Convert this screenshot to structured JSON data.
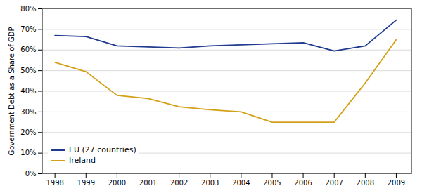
{
  "chart_data": {
    "type": "line",
    "ylabel": "Government Debt as a Share of GDP",
    "x": [
      1998,
      1999,
      2000,
      2001,
      2002,
      2003,
      2004,
      2005,
      2006,
      2007,
      2008,
      2009
    ],
    "series": [
      {
        "name": "EU (27 countries)",
        "color": "#1F3A8F",
        "values": [
          67,
          66.5,
          62,
          61.5,
          61,
          62,
          62.5,
          63,
          63.5,
          59.5,
          62,
          74.5
        ]
      },
      {
        "name": "Ireland",
        "color": "#D4A017",
        "values": [
          54,
          49.5,
          38,
          36.5,
          32.5,
          31,
          30,
          25,
          25,
          25,
          44,
          65
        ]
      }
    ],
    "xlim": [
      1997.6,
      2009.5
    ],
    "xticks": [
      1998,
      1999,
      2000,
      2001,
      2002,
      2003,
      2004,
      2005,
      2006,
      2007,
      2008,
      2009
    ],
    "ylim": [
      0,
      80
    ],
    "yticks": [
      {
        "value": 0,
        "label": "0%"
      },
      {
        "value": 10,
        "label": "10%"
      },
      {
        "value": 20,
        "label": "20%"
      },
      {
        "value": 30,
        "label": "30%"
      },
      {
        "value": 40,
        "label": "40%"
      },
      {
        "value": 50,
        "label": "50%"
      },
      {
        "value": 60,
        "label": "60%"
      },
      {
        "value": 70,
        "label": "70%"
      },
      {
        "value": 80,
        "label": "80%"
      }
    ],
    "grid": "y",
    "legend": "lower left"
  }
}
